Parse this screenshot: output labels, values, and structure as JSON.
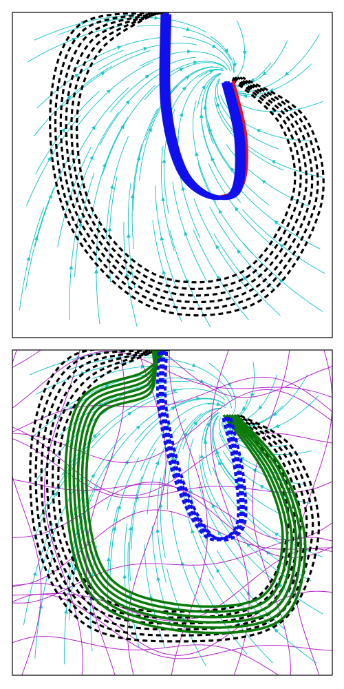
{
  "colors": {
    "background": "#ffffff",
    "frame": "#000000",
    "streamlines_primary": "#1cc7c7",
    "streamlines_secondary": "#b020c8",
    "reference_trajectories": "#000000",
    "trajectory_blue": "#1010ee",
    "trajectory_red": "#ee1111",
    "trajectory_green": "#0a7a0a"
  },
  "chart_data": [
    {
      "type": "streamplot",
      "title": "",
      "xlabel": "",
      "ylabel": "",
      "xlim": [
        0,
        1
      ],
      "ylim": [
        0,
        1
      ],
      "ticks": "none",
      "grid": false,
      "legend": "none",
      "attractor": [
        0.67,
        0.8
      ],
      "dashed_loops": {
        "count": 6,
        "shape": [
          [
            0.47,
            1.0
          ],
          [
            0.24,
            0.92
          ],
          [
            0.16,
            0.68
          ],
          [
            0.22,
            0.36
          ],
          [
            0.45,
            0.14
          ],
          [
            0.75,
            0.16
          ],
          [
            0.92,
            0.42
          ],
          [
            0.88,
            0.66
          ],
          [
            0.7,
            0.8
          ]
        ]
      },
      "blue_tube": {
        "count": 4,
        "path": [
          [
            0.48,
            1.0
          ],
          [
            0.48,
            0.72
          ],
          [
            0.53,
            0.52
          ],
          [
            0.62,
            0.44
          ],
          [
            0.7,
            0.46
          ],
          [
            0.71,
            0.62
          ],
          [
            0.67,
            0.79
          ]
        ]
      },
      "red_branch": [
        [
          0.69,
          0.79
        ],
        [
          0.73,
          0.62
        ],
        [
          0.72,
          0.47
        ],
        [
          0.64,
          0.43
        ]
      ]
    },
    {
      "type": "streamplot",
      "title": "",
      "xlabel": "",
      "ylabel": "",
      "xlim": [
        0,
        1
      ],
      "ylim": [
        0,
        1
      ],
      "ticks": "none",
      "grid": false,
      "legend": "none",
      "attractor": [
        0.67,
        0.8
      ],
      "dashed_loops": {
        "count": 6,
        "shape": [
          [
            0.47,
            1.0
          ],
          [
            0.22,
            0.94
          ],
          [
            0.11,
            0.74
          ],
          [
            0.12,
            0.42
          ],
          [
            0.25,
            0.2
          ],
          [
            0.5,
            0.15
          ],
          [
            0.8,
            0.2
          ],
          [
            0.91,
            0.45
          ],
          [
            0.84,
            0.68
          ],
          [
            0.69,
            0.8
          ]
        ]
      },
      "green_loops": {
        "count": 6,
        "shape": [
          [
            0.46,
            1.0
          ],
          [
            0.42,
            0.9
          ],
          [
            0.24,
            0.82
          ],
          [
            0.2,
            0.56
          ],
          [
            0.27,
            0.28
          ],
          [
            0.5,
            0.18
          ],
          [
            0.8,
            0.2
          ],
          [
            0.88,
            0.4
          ],
          [
            0.82,
            0.62
          ],
          [
            0.68,
            0.8
          ]
        ]
      },
      "blue_tube": {
        "count": 4,
        "path": [
          [
            0.47,
            1.0
          ],
          [
            0.47,
            0.82
          ],
          [
            0.53,
            0.58
          ],
          [
            0.62,
            0.43
          ],
          [
            0.71,
            0.46
          ],
          [
            0.71,
            0.62
          ],
          [
            0.67,
            0.8
          ]
        ]
      }
    }
  ]
}
